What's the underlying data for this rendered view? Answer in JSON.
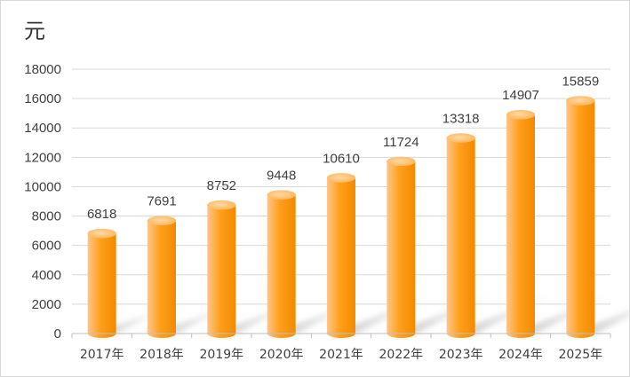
{
  "colors": {
    "bar_light": "#ffc58a",
    "bar_main": "#ff9f1a",
    "bar_dark": "#f28a00",
    "bar_top": "#ffc27a",
    "gridline": "#d9d9d9",
    "axis": "#bfbfbf"
  },
  "chart_data": {
    "type": "bar",
    "unit_label": "元",
    "categories": [
      "2017年",
      "2018年",
      "2019年",
      "2020年",
      "2021年",
      "2022年",
      "2023年",
      "2024年",
      "2025年"
    ],
    "values": [
      6818,
      7691,
      8752,
      9448,
      10610,
      11724,
      13318,
      14907,
      15859
    ],
    "yticks": [
      0,
      2000,
      4000,
      6000,
      8000,
      10000,
      12000,
      14000,
      16000,
      18000
    ],
    "ylim": [
      0,
      18000
    ],
    "grid": true,
    "legend": "none",
    "style": "3d-cylinder"
  }
}
